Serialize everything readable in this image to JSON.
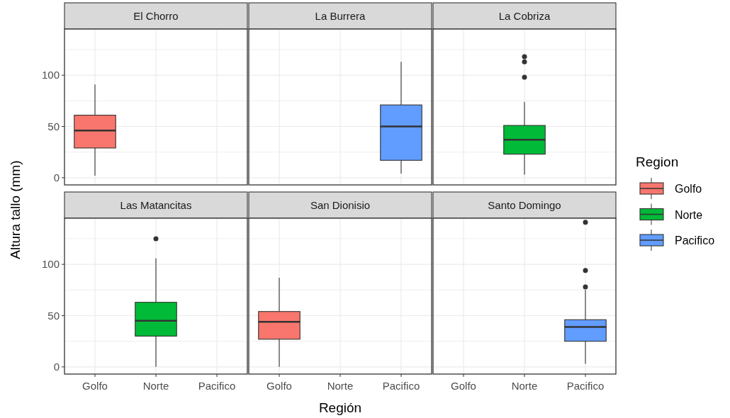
{
  "chart_data": [
    {
      "type": "box",
      "title": "El Chorro",
      "categories": [
        "Golfo",
        "Norte",
        "Pacifico"
      ],
      "ylim": [
        -7,
        145
      ],
      "yticks": [
        0,
        {
          "value": 25,
          "label": null
        },
        50,
        {
          "value": 75,
          "label": null
        },
        100,
        {
          "value": 125,
          "label": null
        }
      ],
      "grid": true,
      "tick_labels": "y",
      "series": [
        {
          "name": "Golfo",
          "color": "#f8766d",
          "boxes": [
            {
              "low": 2,
              "q1": 29,
              "median": 46,
              "q3": 61,
              "high": 91
            },
            null,
            null
          ]
        }
      ]
    },
    {
      "type": "box",
      "title": "La Burrera",
      "categories": [
        "Golfo",
        "Norte",
        "Pacifico"
      ],
      "ylim": [
        -7,
        145
      ],
      "yticks": [
        0,
        {
          "value": 25,
          "label": null
        },
        50,
        {
          "value": 75,
          "label": null
        },
        100,
        {
          "value": 125,
          "label": null
        }
      ],
      "grid": true,
      "tick_labels": false,
      "series": [
        {
          "name": "Pacifico",
          "color": "#619cff",
          "boxes": [
            null,
            null,
            {
              "low": 4,
              "q1": 17,
              "median": 50,
              "q3": 71,
              "high": 113
            }
          ]
        }
      ]
    },
    {
      "type": "box",
      "title": "La Cobriza",
      "categories": [
        "Golfo",
        "Norte",
        "Pacifico"
      ],
      "ylim": [
        -7,
        145
      ],
      "yticks": [
        0,
        {
          "value": 25,
          "label": null
        },
        50,
        {
          "value": 75,
          "label": null
        },
        100,
        {
          "value": 125,
          "label": null
        }
      ],
      "grid": true,
      "tick_labels": false,
      "legend": "right",
      "legend_title": "Region",
      "series": [
        {
          "name": "Norte",
          "color": "#00ba38",
          "boxes": [
            null,
            {
              "low": 3,
              "q1": 23,
              "median": 37,
              "q3": 51,
              "high": 74,
              "outliers": [
                98,
                113,
                118
              ]
            },
            null
          ]
        }
      ]
    },
    {
      "type": "box",
      "title": "Las Matancitas",
      "ylabel": "Altura tallo (mm)",
      "categories": [
        "Golfo",
        "Norte",
        "Pacifico"
      ],
      "ylim": [
        -7,
        145
      ],
      "yticks": [
        0,
        {
          "value": 25,
          "label": null
        },
        50,
        {
          "value": 75,
          "label": null
        },
        100,
        {
          "value": 125,
          "label": null
        }
      ],
      "grid": true,
      "series": [
        {
          "name": "Norte",
          "color": "#00ba38",
          "boxes": [
            null,
            {
              "low": 0,
              "q1": 30,
              "median": 45,
              "q3": 63,
              "high": 106,
              "outliers": [
                125
              ]
            },
            null
          ]
        }
      ]
    },
    {
      "type": "box",
      "title": "San Dionisio",
      "xlabel": "Región",
      "categories": [
        "Golfo",
        "Norte",
        "Pacifico"
      ],
      "ylim": [
        -7,
        145
      ],
      "yticks": [
        0,
        {
          "value": 25,
          "label": null
        },
        50,
        {
          "value": 75,
          "label": null
        },
        100,
        {
          "value": 125,
          "label": null
        }
      ],
      "grid": true,
      "tick_labels": "x",
      "series": [
        {
          "name": "Golfo",
          "color": "#f8766d",
          "boxes": [
            {
              "low": 0,
              "q1": 27,
              "median": 44,
              "q3": 54,
              "high": 87
            },
            null,
            null
          ]
        }
      ]
    },
    {
      "type": "box",
      "title": "Santo Domingo",
      "categories": [
        "Golfo",
        "Norte",
        "Pacifico"
      ],
      "ylim": [
        -7,
        145
      ],
      "yticks": [
        0,
        {
          "value": 25,
          "label": null
        },
        50,
        {
          "value": 75,
          "label": null
        },
        100,
        {
          "value": 125,
          "label": null
        }
      ],
      "grid": true,
      "tick_labels": "x",
      "series": [
        {
          "name": "Pacifico",
          "color": "#619cff",
          "boxes": [
            null,
            null,
            {
              "low": 3,
              "q1": 25,
              "median": 39,
              "q3": 46,
              "high": 75,
              "outliers": [
                78,
                94,
                141
              ]
            }
          ]
        }
      ]
    }
  ]
}
